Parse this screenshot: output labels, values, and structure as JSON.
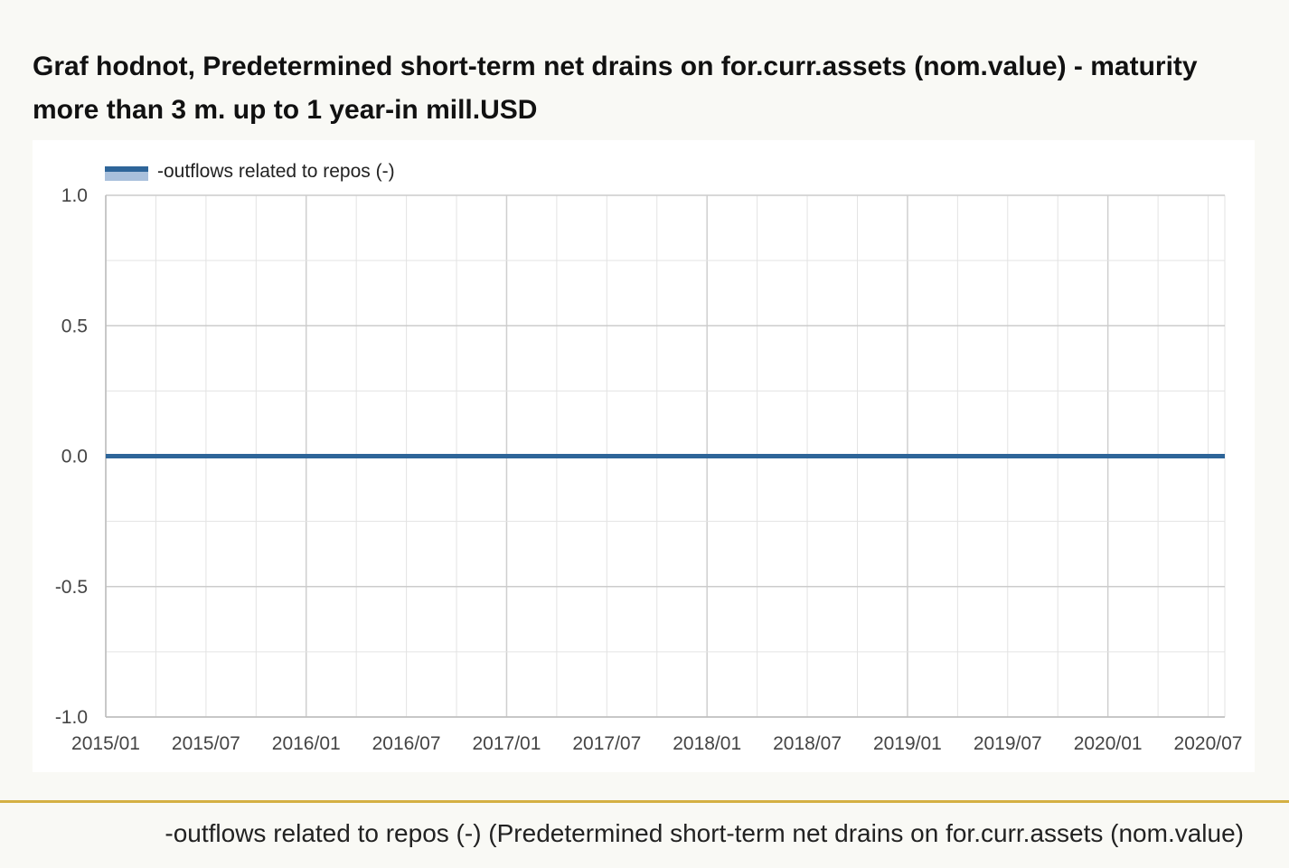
{
  "title": "Graf hodnot, Predetermined short-term net drains on for.curr.assets (nom.value) - maturity more than 3 m. up to 1 year-in mill.USD",
  "footer_caption": "-outflows related to repos (-) (Predetermined short-term net drains on for.curr.assets (nom.value)",
  "colors": {
    "series_line": "#2e6599",
    "legend_band": "#a9c0dc",
    "grid": "#e3e3e3",
    "axis": "#bdbdbd",
    "divider": "#d4b043"
  },
  "chart_data": {
    "type": "line",
    "title": "Graf hodnot, Predetermined short-term net drains on for.curr.assets (nom.value) - maturity more than 3 m. up to 1 year-in mill.USD",
    "xlabel": "",
    "ylabel": "",
    "x_tick_labels": [
      "2015/01",
      "2015/07",
      "2016/01",
      "2016/07",
      "2017/01",
      "2017/07",
      "2018/01",
      "2018/07",
      "2019/01",
      "2019/07",
      "2020/01",
      "2020/07"
    ],
    "y_tick_labels": [
      "1.0",
      "0.5",
      "0.0",
      "-0.5",
      "-1.0"
    ],
    "y_ticks": [
      1.0,
      0.5,
      0.0,
      -0.5,
      -1.0
    ],
    "ylim": [
      -1.0,
      1.0
    ],
    "xlim": [
      "2015/01",
      "2020/08"
    ],
    "grid": true,
    "legend_position": "top-left",
    "series": [
      {
        "name": "-outflows related to repos (-)",
        "x": [
          "2015/01",
          "2020/08"
        ],
        "values": [
          0.0,
          0.0
        ]
      }
    ]
  }
}
